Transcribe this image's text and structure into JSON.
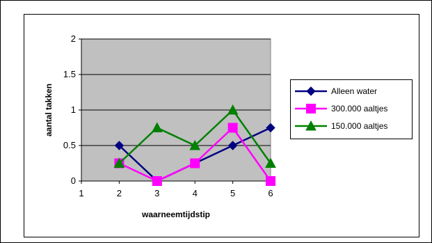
{
  "chart_data": {
    "type": "line",
    "title": "",
    "xlabel": "waarneemtijdstip",
    "ylabel": "aantal takken",
    "x_ticks": [
      "1",
      "2",
      "3",
      "4",
      "5",
      "6"
    ],
    "y_ticks": [
      "0",
      "0.5",
      "1",
      "1.5",
      "2"
    ],
    "xlim": [
      1,
      6
    ],
    "ylim": [
      0,
      2
    ],
    "grid": "horizontal",
    "legend_position": "right",
    "plot_background": "#c0c0c0",
    "series": [
      {
        "name": "Alleen water",
        "color": "#000080",
        "marker": "diamond",
        "x": [
          2,
          3,
          4,
          5,
          6
        ],
        "y": [
          0.5,
          0,
          0.25,
          0.5,
          0.75
        ]
      },
      {
        "name": "300.000 aaltjes",
        "color": "#ff00ff",
        "marker": "square",
        "x": [
          2,
          3,
          4,
          5,
          6
        ],
        "y": [
          0.25,
          0,
          0.25,
          0.75,
          0
        ]
      },
      {
        "name": "150.000 aaltjes",
        "color": "#008000",
        "marker": "triangle",
        "x": [
          2,
          3,
          4,
          5,
          6
        ],
        "y": [
          0.25,
          0.75,
          0.5,
          1,
          0.25
        ]
      }
    ]
  }
}
